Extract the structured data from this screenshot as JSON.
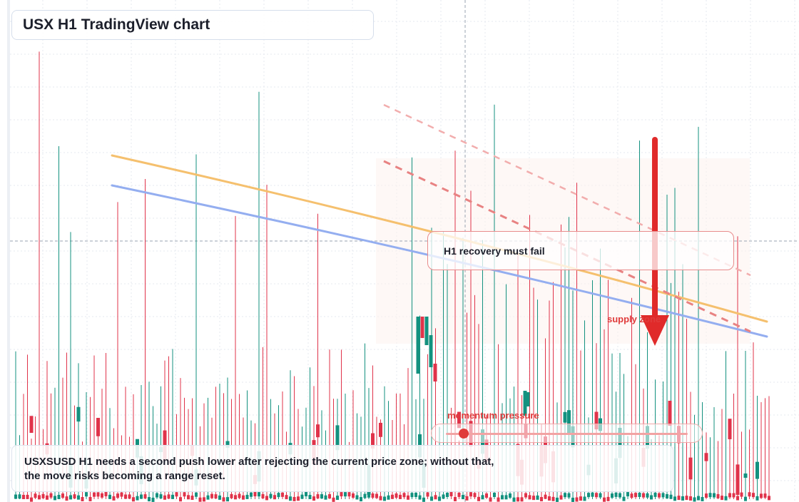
{
  "chart": {
    "title": "USX H1 TradingView chart",
    "annotation": "H1 recovery must fail",
    "zone_label": "supply zone",
    "momentum_label": "momentum pressure",
    "summary_line1": "USXSUSD H1 needs a second push lower after rejecting the current price zone; without that,",
    "summary_line2": "the move risks becoming a range reset."
  },
  "colors": {
    "bull": "#13917f",
    "bear": "#e0334a",
    "ma_fast": "#f5c06e",
    "ma_slow": "#94aef0",
    "accent": "#e03b3b"
  },
  "chart_data": {
    "type": "candlestick",
    "timeframe": "H1",
    "symbol": "USXSUSD",
    "grid": true,
    "legend": "none",
    "series": [
      {
        "name": "",
        "kind": "candles",
        "note": "tall thin wicks with small bodies near the bottom of the pane"
      },
      {
        "name": "",
        "kind": "moving-average",
        "style": "orange",
        "trend": "descending"
      },
      {
        "name": "",
        "kind": "moving-average",
        "style": "blue",
        "trend": "descending"
      },
      {
        "name": "",
        "kind": "trendline",
        "style": "dashed-red",
        "trend": "descending"
      },
      {
        "name": "",
        "kind": "trendline",
        "style": "dashed-light-red",
        "trend": "descending"
      }
    ],
    "annotations": [
      "H1 recovery must fail",
      "supply zone",
      "momentum pressure"
    ],
    "bias_arrow": "down",
    "momentum_pressure": 0.05
  }
}
